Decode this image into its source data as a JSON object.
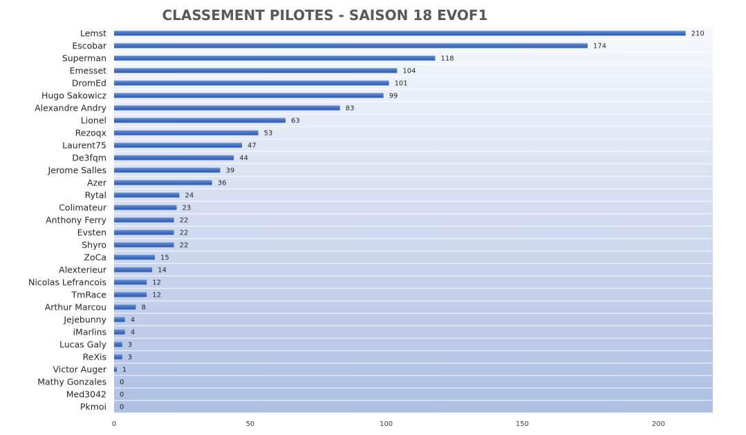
{
  "chart_data": {
    "type": "bar",
    "orientation": "horizontal",
    "title": "CLASSEMENT PILOTES - SAISON 18   EVOF1",
    "categories": [
      "Lemst",
      "Escobar",
      "Superman",
      "Emesset",
      "DromEd",
      "Hugo Sakowicz",
      "Alexandre Andry",
      "Lionel",
      "Rezoqx",
      "Laurent75",
      "De3fqm",
      "Jerome Salles",
      "Azer",
      "Rytal",
      "Colimateur",
      "Anthony Ferry",
      "Evsten",
      "Shyro",
      "ZoCa",
      "Alexterieur",
      "Nicolas Lefrancois",
      "TmRace",
      "Arthur Marcou",
      "Jejebunny",
      "iMarlins",
      "Lucas Galy",
      "ReXis",
      "Victor Auger",
      "Mathy Gonzales",
      "Med3042",
      "Pkmoi"
    ],
    "values": [
      210,
      174,
      118,
      104,
      101,
      99,
      83,
      63,
      53,
      47,
      44,
      39,
      36,
      24,
      23,
      22,
      22,
      22,
      15,
      14,
      12,
      12,
      8,
      4,
      4,
      3,
      3,
      1,
      0,
      0,
      0
    ],
    "xlim": [
      0,
      220
    ],
    "xticks": [
      0,
      50,
      100,
      150,
      200
    ],
    "grid": "horizontal",
    "bar_color": "#4472c4",
    "background_gradient": [
      "#f6f8fc",
      "#aebfe3"
    ],
    "legend": "none"
  }
}
